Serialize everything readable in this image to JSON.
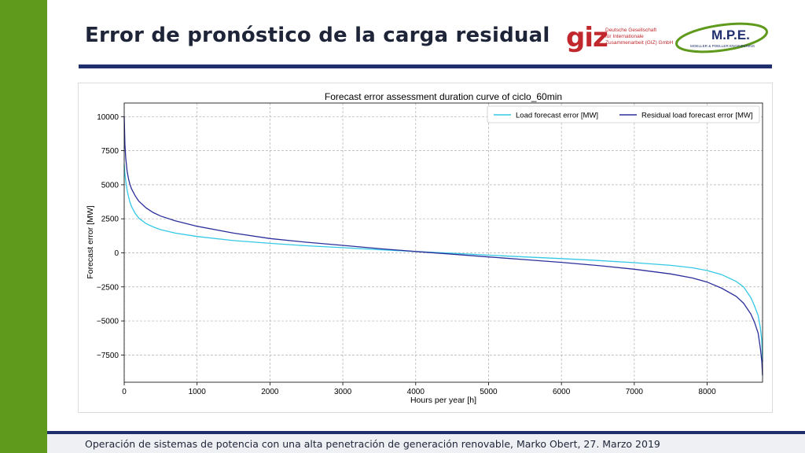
{
  "slide": {
    "title": "Error de pronóstico de la carga residual",
    "footer": "Operación de sistemas de potencia con una alta penetración de generación renovable, Marko Obert, 27. Marzo 2019"
  },
  "logos": {
    "giz": {
      "mark": "giz",
      "lines": [
        "Deutsche Gesellschaft",
        "für Internationale",
        "Zusammenarbeit (GIZ) GmbH"
      ],
      "color": "#c0282d"
    },
    "mpe": {
      "mark": "M.P.E.",
      "subtitle": "MOELLER & POELLER ENGINEERING",
      "colors": {
        "text": "#1f2f6e",
        "swoosh": "#5f9a1c"
      }
    }
  },
  "colors": {
    "accent_green": "#5f9a1c",
    "navy_rule": "#1f2f6e",
    "load_series": "#35c8e6",
    "residual_series": "#2b2f9a"
  },
  "chart_data": {
    "type": "line",
    "title": "Forecast error assessment duration curve of ciclo_60min",
    "xlabel": "Hours per year [h]",
    "ylabel": "Forecast error [MW]",
    "xlim": [
      0,
      8760
    ],
    "ylim": [
      -9500,
      11000
    ],
    "xticks": [
      0,
      1000,
      2000,
      3000,
      4000,
      5000,
      6000,
      7000,
      8000
    ],
    "yticks": [
      -7500,
      -5000,
      -2500,
      0,
      2500,
      5000,
      7500,
      10000
    ],
    "ytick_labels": [
      "−7500",
      "−5000",
      "−2500",
      "0",
      "2500",
      "5000",
      "7500",
      "10000"
    ],
    "grid": true,
    "legend_position": "top-right",
    "series": [
      {
        "name": "Load forecast error [MW]",
        "color": "#35c8e6",
        "x": [
          0,
          10,
          20,
          40,
          60,
          80,
          100,
          150,
          200,
          300,
          400,
          500,
          700,
          1000,
          1500,
          2000,
          2500,
          3000,
          3500,
          4000,
          4500,
          5000,
          5500,
          6000,
          6500,
          7000,
          7500,
          7800,
          8000,
          8200,
          8400,
          8500,
          8600,
          8650,
          8700,
          8730,
          8750,
          8760
        ],
        "y": [
          6500,
          5800,
          5300,
          4600,
          4100,
          3700,
          3400,
          2900,
          2550,
          2150,
          1900,
          1700,
          1450,
          1200,
          900,
          700,
          520,
          380,
          230,
          100,
          -30,
          -170,
          -300,
          -420,
          -560,
          -720,
          -920,
          -1100,
          -1300,
          -1600,
          -2100,
          -2500,
          -3300,
          -3900,
          -4600,
          -5500,
          -6500,
          -8000
        ]
      },
      {
        "name": "Residual load forecast error [MW]",
        "color": "#2b2f9a",
        "x": [
          0,
          10,
          20,
          40,
          60,
          80,
          100,
          150,
          200,
          300,
          400,
          500,
          700,
          1000,
          1500,
          2000,
          2500,
          3000,
          3500,
          4000,
          4500,
          5000,
          5500,
          6000,
          6500,
          7000,
          7500,
          7800,
          8000,
          8200,
          8400,
          8500,
          8600,
          8650,
          8700,
          8730,
          8750,
          8760
        ],
        "y": [
          10000,
          8000,
          7000,
          6000,
          5400,
          5000,
          4700,
          4200,
          3800,
          3300,
          2950,
          2700,
          2350,
          1950,
          1450,
          1050,
          780,
          550,
          310,
          100,
          -100,
          -300,
          -500,
          -700,
          -930,
          -1200,
          -1550,
          -1850,
          -2150,
          -2600,
          -3200,
          -3700,
          -4500,
          -5100,
          -5900,
          -7000,
          -8000,
          -9000
        ]
      }
    ]
  }
}
